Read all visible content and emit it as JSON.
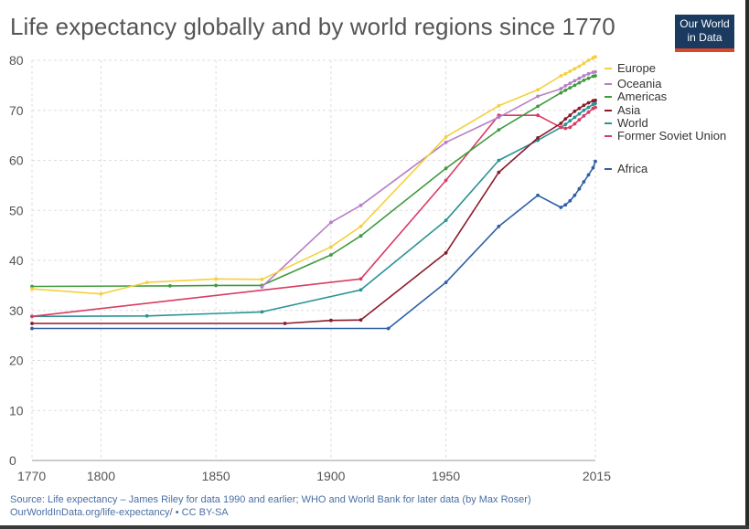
{
  "header": {
    "title": "Life expectancy globally and by world regions since 1770",
    "logo_line1": "Our World",
    "logo_line2": "in Data"
  },
  "footer": {
    "source_line1": "Source: Life expectancy – James Riley for data 1990 and earlier; WHO and World Bank for later data (by Max Roser)",
    "source_line2": "OurWorldInData.org/life-expectancy/ • CC BY-SA"
  },
  "colors": {
    "Europe": "#f5d03b",
    "Oceania": "#b77ec6",
    "Americas": "#3f9b3e",
    "Asia": "#8b1a2b",
    "World": "#2a9395",
    "Former Soviet Union": "#d83b63",
    "Africa": "#2e5fa6",
    "grid": "#dddddd"
  },
  "chart_data": {
    "type": "line",
    "title": "Life expectancy globally and by world regions since 1770",
    "xlabel": "",
    "ylabel": "",
    "xlim": [
      1770,
      2015
    ],
    "ylim": [
      0,
      80
    ],
    "x_ticks": [
      1770,
      1800,
      1850,
      1900,
      1950,
      2015
    ],
    "y_ticks": [
      0,
      10,
      20,
      30,
      40,
      50,
      60,
      70,
      80
    ],
    "grid": true,
    "legend_position": "right",
    "series": [
      {
        "name": "Europe",
        "points": [
          [
            1770,
            34.3
          ],
          [
            1800,
            33.3
          ],
          [
            1820,
            35.6
          ],
          [
            1850,
            36.3
          ],
          [
            1870,
            36.2
          ],
          [
            1900,
            42.7
          ],
          [
            1913,
            46.8
          ],
          [
            1950,
            64.7
          ],
          [
            1973,
            70.9
          ],
          [
            1990,
            74.1
          ],
          [
            2000,
            76.9
          ],
          [
            2002,
            77.3
          ],
          [
            2004,
            77.8
          ],
          [
            2006,
            78.3
          ],
          [
            2008,
            78.8
          ],
          [
            2010,
            79.4
          ],
          [
            2012,
            80.0
          ],
          [
            2014,
            80.5
          ],
          [
            2015,
            80.7
          ]
        ],
        "end_label": "Europe"
      },
      {
        "name": "Oceania",
        "points": [
          [
            1870,
            34.7
          ],
          [
            1900,
            47.6
          ],
          [
            1913,
            51.0
          ],
          [
            1950,
            63.6
          ],
          [
            1973,
            68.6
          ],
          [
            1990,
            72.8
          ],
          [
            2000,
            74.3
          ],
          [
            2002,
            74.9
          ],
          [
            2004,
            75.4
          ],
          [
            2006,
            75.9
          ],
          [
            2008,
            76.4
          ],
          [
            2010,
            76.9
          ],
          [
            2012,
            77.3
          ],
          [
            2014,
            77.6
          ],
          [
            2015,
            77.7
          ]
        ],
        "end_label": "Oceania"
      },
      {
        "name": "Americas",
        "points": [
          [
            1770,
            34.8
          ],
          [
            1830,
            34.9
          ],
          [
            1850,
            35.0
          ],
          [
            1870,
            35.0
          ],
          [
            1900,
            41.1
          ],
          [
            1913,
            44.9
          ],
          [
            1950,
            58.4
          ],
          [
            1973,
            66.1
          ],
          [
            1990,
            70.8
          ],
          [
            2000,
            73.5
          ],
          [
            2002,
            74.0
          ],
          [
            2004,
            74.5
          ],
          [
            2006,
            75.0
          ],
          [
            2008,
            75.5
          ],
          [
            2010,
            76.0
          ],
          [
            2012,
            76.4
          ],
          [
            2014,
            76.8
          ],
          [
            2015,
            76.9
          ]
        ],
        "end_label": "Americas"
      },
      {
        "name": "Asia",
        "points": [
          [
            1770,
            27.4
          ],
          [
            1880,
            27.4
          ],
          [
            1900,
            28.0
          ],
          [
            1913,
            28.1
          ],
          [
            1950,
            41.5
          ],
          [
            1973,
            57.6
          ],
          [
            1990,
            64.5
          ],
          [
            2000,
            67.4
          ],
          [
            2002,
            68.3
          ],
          [
            2004,
            69.0
          ],
          [
            2006,
            69.8
          ],
          [
            2008,
            70.4
          ],
          [
            2010,
            71.0
          ],
          [
            2012,
            71.5
          ],
          [
            2014,
            71.9
          ],
          [
            2015,
            72.0
          ]
        ],
        "end_label": "Asia"
      },
      {
        "name": "World",
        "points": [
          [
            1770,
            28.8
          ],
          [
            1820,
            28.9
          ],
          [
            1870,
            29.7
          ],
          [
            1913,
            34.1
          ],
          [
            1950,
            48.0
          ],
          [
            1973,
            60.0
          ],
          [
            1990,
            64.0
          ],
          [
            2000,
            66.6
          ],
          [
            2002,
            67.2
          ],
          [
            2004,
            67.9
          ],
          [
            2006,
            68.6
          ],
          [
            2008,
            69.3
          ],
          [
            2010,
            70.0
          ],
          [
            2012,
            70.6
          ],
          [
            2014,
            71.2
          ],
          [
            2015,
            71.4
          ]
        ],
        "end_label": "World"
      },
      {
        "name": "Former Soviet Union",
        "points": [
          [
            1770,
            28.8
          ],
          [
            1913,
            36.3
          ],
          [
            1950,
            56.0
          ],
          [
            1973,
            69.0
          ],
          [
            1990,
            69.0
          ],
          [
            2000,
            66.6
          ],
          [
            2002,
            66.4
          ],
          [
            2004,
            66.6
          ],
          [
            2006,
            67.3
          ],
          [
            2008,
            68.1
          ],
          [
            2010,
            68.9
          ],
          [
            2012,
            69.6
          ],
          [
            2014,
            70.4
          ],
          [
            2015,
            70.6
          ]
        ],
        "end_label": "Former Soviet Union"
      },
      {
        "name": "Africa",
        "points": [
          [
            1770,
            26.4
          ],
          [
            1925,
            26.4
          ],
          [
            1950,
            35.6
          ],
          [
            1973,
            46.8
          ],
          [
            1990,
            53.0
          ],
          [
            2000,
            50.6
          ],
          [
            2002,
            51.1
          ],
          [
            2004,
            51.9
          ],
          [
            2006,
            53.0
          ],
          [
            2008,
            54.3
          ],
          [
            2010,
            55.7
          ],
          [
            2012,
            57.1
          ],
          [
            2014,
            58.5
          ],
          [
            2015,
            59.8
          ]
        ],
        "end_label": "Africa"
      }
    ]
  }
}
